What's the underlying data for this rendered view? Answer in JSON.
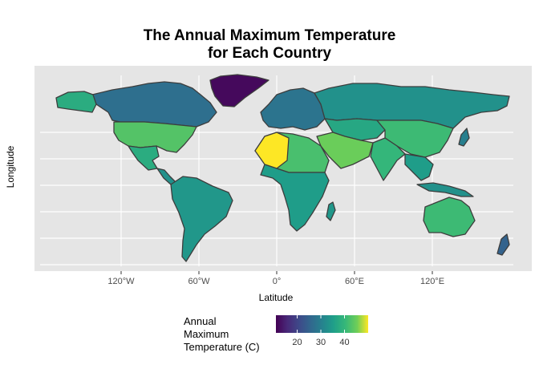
{
  "title_line1": "The Annual Maximum Temperature",
  "title_line2": "for Each Country",
  "axes": {
    "x_label": "Latitude",
    "y_label": "Longitude",
    "x_ticks": [
      {
        "lon": -120,
        "label": "120°W"
      },
      {
        "lon": -60,
        "label": "60°W"
      },
      {
        "lon": 0,
        "label": "0°"
      },
      {
        "lon": 60,
        "label": "60°E"
      },
      {
        "lon": 120,
        "label": "120°E"
      }
    ],
    "lat_gridlines": [
      80,
      60,
      40,
      20,
      0,
      -20,
      -40,
      -60
    ],
    "lon_range": [
      -180,
      180
    ],
    "lat_range": [
      -60,
      84
    ]
  },
  "legend": {
    "title_line1": "Annual",
    "title_line2": "Maximum",
    "title_line3": "Temperature (C)",
    "min": 11,
    "max": 50,
    "ticks": [
      20,
      30,
      40
    ],
    "palette": "viridis"
  },
  "colors": {
    "panel": "#e5e5e5",
    "grid": "#ffffff",
    "border": "#3d3d3d"
  },
  "regions": [
    {
      "name": "Greenland",
      "value": 12
    },
    {
      "name": "Canada",
      "value": 27
    },
    {
      "name": "Alaska (USA)",
      "value": 38
    },
    {
      "name": "United States",
      "value": 43
    },
    {
      "name": "Mexico",
      "value": 38
    },
    {
      "name": "Central America",
      "value": 33
    },
    {
      "name": "South America",
      "value": 34
    },
    {
      "name": "Europe",
      "value": 28
    },
    {
      "name": "Russia",
      "value": 33
    },
    {
      "name": "Central Asia",
      "value": 37
    },
    {
      "name": "China",
      "value": 41
    },
    {
      "name": "Arabia",
      "value": 45
    },
    {
      "name": "India",
      "value": 40
    },
    {
      "name": "Southeast Asia",
      "value": 35
    },
    {
      "name": "North Africa",
      "value": 42
    },
    {
      "name": "Mauritania / Algeria",
      "value": 50
    },
    {
      "name": "Sub-Saharan Africa",
      "value": 35
    },
    {
      "name": "Australia",
      "value": 41
    },
    {
      "name": "Indonesia",
      "value": 33
    },
    {
      "name": "Japan",
      "value": 30
    },
    {
      "name": "New Zealand",
      "value": 25
    },
    {
      "name": "Madagascar",
      "value": 34
    }
  ]
}
